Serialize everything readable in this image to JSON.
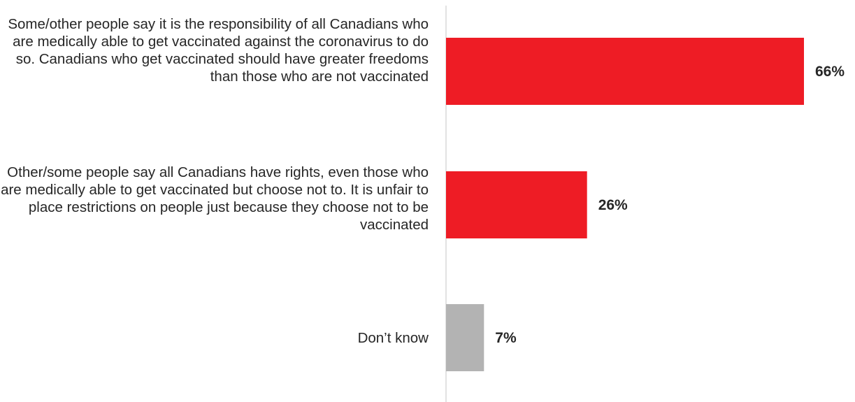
{
  "chart_data": {
    "type": "bar",
    "orientation": "horizontal",
    "categories": [
      "Some/other people say it is the responsibility of all Canadians who are medically able to get vaccinated against the coronavirus to do so. Canadians who get vaccinated should have greater freedoms than those who are not vaccinated",
      "Other/some people say all Canadians have rights, even those who are medically able to get vaccinated but choose not to. It is unfair to place restrictions on people just because they choose not to be vaccinated",
      "Don’t know"
    ],
    "values": [
      66,
      26,
      7
    ],
    "value_labels": [
      "66%",
      "26%",
      "7%"
    ],
    "colors": [
      "#ee1c25",
      "#ee1c25",
      "#b3b3b3"
    ],
    "xlim": [
      0,
      66
    ],
    "grid": false,
    "legend": "none"
  }
}
